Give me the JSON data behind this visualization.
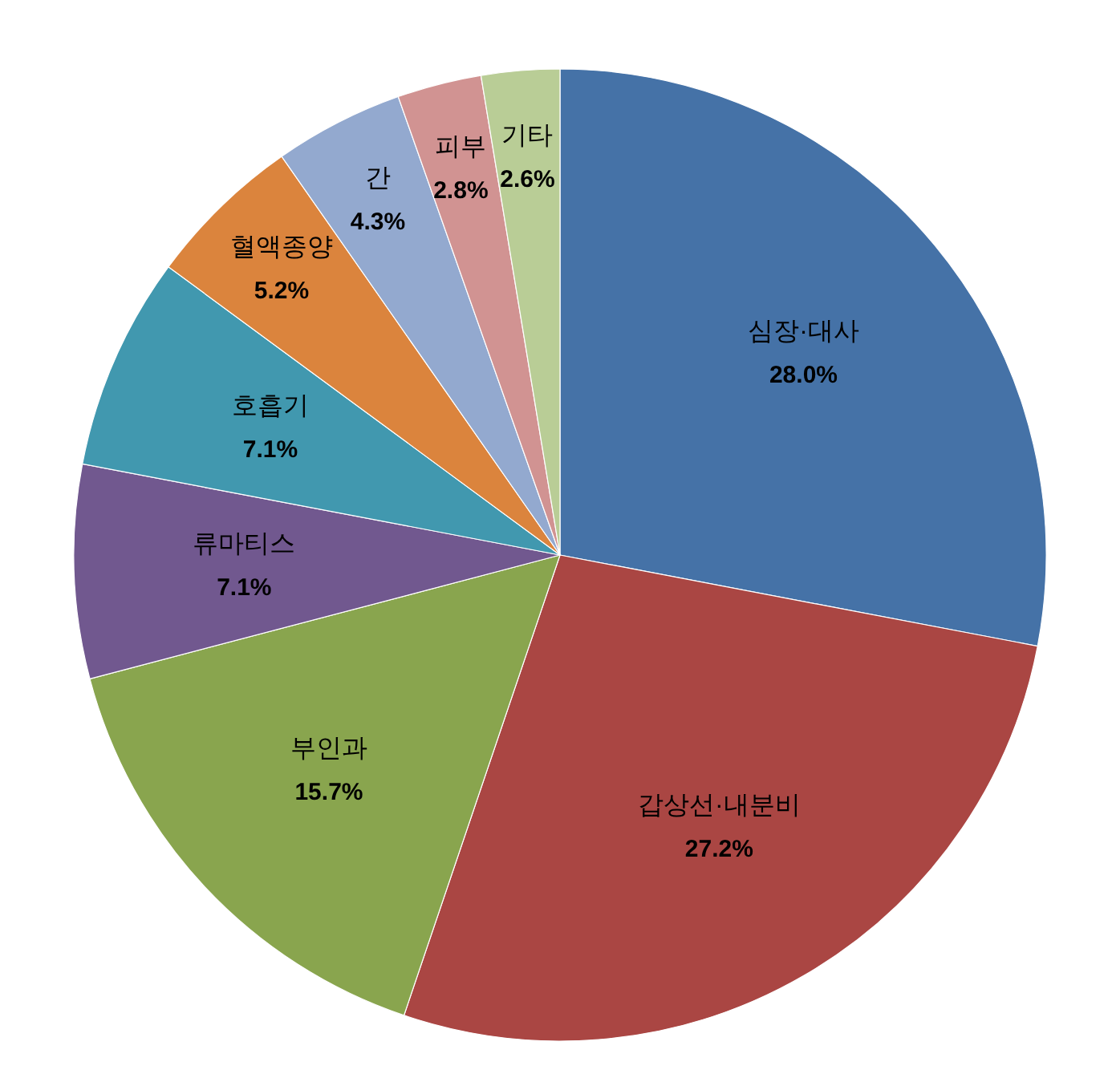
{
  "chart_data": {
    "type": "pie",
    "categories": [
      "심장·대사",
      "갑상선·내분비",
      "부인과",
      "류마티스",
      "호흡기",
      "혈액종양",
      "간",
      "피부",
      "기타"
    ],
    "values": [
      28.0,
      27.2,
      15.7,
      7.1,
      7.1,
      5.2,
      4.3,
      2.8,
      2.6
    ],
    "value_labels": [
      "28.0%",
      "27.2%",
      "15.7%",
      "7.1%",
      "7.1%",
      "5.2%",
      "4.3%",
      "2.8%",
      "2.6%"
    ],
    "colors": [
      "#4572a7",
      "#aa4643",
      "#89a54e",
      "#71588f",
      "#4198af",
      "#db843d",
      "#93a9cf",
      "#d19392",
      "#b9cd96"
    ]
  }
}
